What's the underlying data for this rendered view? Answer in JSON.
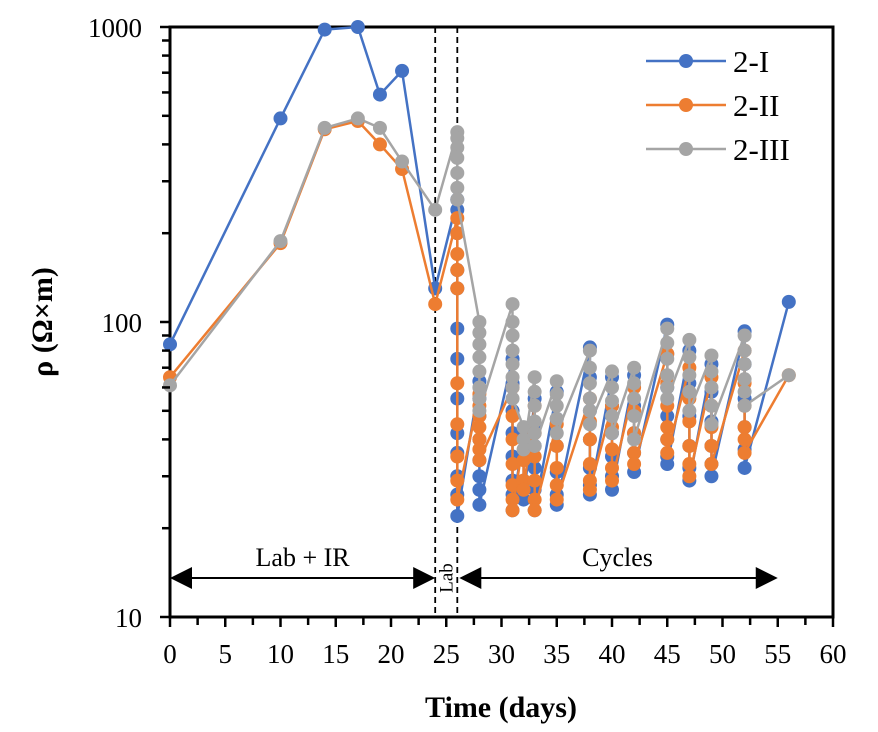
{
  "chart_data": {
    "type": "line",
    "title": "",
    "xlabel": "Time (days)",
    "ylabel": "ρ (Ω×m)",
    "xlim": [
      0,
      60
    ],
    "ylim": [
      10,
      1000
    ],
    "yscale": "log",
    "grid": false,
    "legend_position": "top-right",
    "x_ticks": [
      0,
      5,
      10,
      15,
      20,
      25,
      30,
      35,
      40,
      45,
      50,
      55,
      60
    ],
    "x_tick_labels": [
      "0",
      "5",
      "10",
      "15",
      "20",
      "25",
      "30",
      "35",
      "40",
      "45",
      "50",
      "55",
      "60"
    ],
    "y_ticks": [
      10,
      100,
      1000
    ],
    "y_tick_labels": [
      "10",
      "100",
      "1000"
    ],
    "vertical_dashed_lines": [
      24,
      26
    ],
    "annotations": [
      {
        "text": "Lab + IR",
        "from": 0,
        "to": 24,
        "level": 18
      },
      {
        "text": "Lab",
        "from": 24,
        "to": 26,
        "rotated": true
      },
      {
        "text": "Cycles",
        "from": 26,
        "to": 55,
        "level": 18
      }
    ],
    "series": [
      {
        "name": "2-I",
        "color": "#4472C4",
        "points": [
          [
            0,
            84
          ],
          [
            10,
            490
          ],
          [
            14,
            980
          ],
          [
            17,
            1000
          ],
          [
            19,
            590
          ],
          [
            21,
            710
          ],
          [
            24,
            130
          ],
          [
            26,
            260
          ],
          [
            26,
            240
          ],
          [
            26,
            200
          ],
          [
            26,
            150
          ],
          [
            26,
            130
          ],
          [
            26,
            95
          ],
          [
            26,
            75
          ],
          [
            26,
            55
          ],
          [
            26,
            42
          ],
          [
            26,
            36
          ],
          [
            26,
            30
          ],
          [
            26,
            26
          ],
          [
            26,
            22
          ],
          [
            28,
            63
          ],
          [
            28,
            55
          ],
          [
            28,
            48
          ],
          [
            28,
            40
          ],
          [
            28,
            34
          ],
          [
            28,
            30
          ],
          [
            28,
            27
          ],
          [
            28,
            24
          ],
          [
            31,
            75
          ],
          [
            31,
            62
          ],
          [
            31,
            50
          ],
          [
            31,
            42
          ],
          [
            31,
            35
          ],
          [
            31,
            29
          ],
          [
            31,
            26
          ],
          [
            31,
            23
          ],
          [
            32,
            42
          ],
          [
            32,
            35
          ],
          [
            32,
            29
          ],
          [
            32,
            25
          ],
          [
            33,
            55
          ],
          [
            33,
            45
          ],
          [
            33,
            38
          ],
          [
            33,
            32
          ],
          [
            33,
            27
          ],
          [
            33,
            23
          ],
          [
            35,
            58
          ],
          [
            35,
            47
          ],
          [
            35,
            38
          ],
          [
            35,
            31
          ],
          [
            35,
            26
          ],
          [
            35,
            24
          ],
          [
            38,
            82
          ],
          [
            38,
            65
          ],
          [
            38,
            50
          ],
          [
            38,
            40
          ],
          [
            38,
            32
          ],
          [
            38,
            28
          ],
          [
            38,
            26
          ],
          [
            40,
            65
          ],
          [
            40,
            52
          ],
          [
            40,
            42
          ],
          [
            40,
            35
          ],
          [
            40,
            30
          ],
          [
            40,
            27
          ],
          [
            42,
            66
          ],
          [
            42,
            52
          ],
          [
            42,
            42
          ],
          [
            42,
            36
          ],
          [
            42,
            31
          ],
          [
            45,
            98
          ],
          [
            45,
            78
          ],
          [
            45,
            60
          ],
          [
            45,
            48
          ],
          [
            45,
            40
          ],
          [
            45,
            35
          ],
          [
            45,
            33
          ],
          [
            47,
            80
          ],
          [
            47,
            62
          ],
          [
            47,
            48
          ],
          [
            47,
            38
          ],
          [
            47,
            32
          ],
          [
            47,
            29
          ],
          [
            49,
            72
          ],
          [
            49,
            58
          ],
          [
            49,
            46
          ],
          [
            49,
            38
          ],
          [
            49,
            33
          ],
          [
            49,
            30
          ],
          [
            52,
            93
          ],
          [
            52,
            72
          ],
          [
            52,
            55
          ],
          [
            52,
            44
          ],
          [
            52,
            37
          ],
          [
            52,
            32
          ],
          [
            56,
            117
          ]
        ]
      },
      {
        "name": "2-II",
        "color": "#ED7D31",
        "points": [
          [
            0,
            65
          ],
          [
            10,
            185
          ],
          [
            14,
            450
          ],
          [
            17,
            480
          ],
          [
            19,
            400
          ],
          [
            21,
            330
          ],
          [
            24,
            115
          ],
          [
            26,
            225
          ],
          [
            26,
            200
          ],
          [
            26,
            170
          ],
          [
            26,
            150
          ],
          [
            26,
            130
          ],
          [
            26,
            62
          ],
          [
            26,
            45
          ],
          [
            26,
            35
          ],
          [
            26,
            29
          ],
          [
            26,
            25
          ],
          [
            28,
            57
          ],
          [
            28,
            52
          ],
          [
            28,
            48
          ],
          [
            28,
            44
          ],
          [
            28,
            40
          ],
          [
            28,
            37
          ],
          [
            28,
            34
          ],
          [
            31,
            60
          ],
          [
            31,
            48
          ],
          [
            31,
            40
          ],
          [
            31,
            33
          ],
          [
            31,
            28
          ],
          [
            31,
            25
          ],
          [
            31,
            23
          ],
          [
            32,
            40
          ],
          [
            32,
            34
          ],
          [
            32,
            29
          ],
          [
            32,
            27
          ],
          [
            33,
            52
          ],
          [
            33,
            42
          ],
          [
            33,
            35
          ],
          [
            33,
            29
          ],
          [
            33,
            25
          ],
          [
            33,
            23
          ],
          [
            35,
            45
          ],
          [
            35,
            38
          ],
          [
            35,
            32
          ],
          [
            35,
            28
          ],
          [
            35,
            25
          ],
          [
            38,
            55
          ],
          [
            38,
            46
          ],
          [
            38,
            40
          ],
          [
            38,
            33
          ],
          [
            38,
            29
          ],
          [
            38,
            27
          ],
          [
            40,
            52
          ],
          [
            40,
            44
          ],
          [
            40,
            37
          ],
          [
            40,
            32
          ],
          [
            40,
            29
          ],
          [
            42,
            60
          ],
          [
            42,
            50
          ],
          [
            42,
            42
          ],
          [
            42,
            36
          ],
          [
            42,
            33
          ],
          [
            45,
            78
          ],
          [
            45,
            62
          ],
          [
            45,
            52
          ],
          [
            45,
            44
          ],
          [
            45,
            40
          ],
          [
            45,
            36
          ],
          [
            47,
            70
          ],
          [
            47,
            55
          ],
          [
            47,
            46
          ],
          [
            47,
            38
          ],
          [
            47,
            33
          ],
          [
            47,
            30
          ],
          [
            49,
            65
          ],
          [
            49,
            52
          ],
          [
            49,
            44
          ],
          [
            49,
            38
          ],
          [
            49,
            33
          ],
          [
            52,
            80
          ],
          [
            52,
            62
          ],
          [
            52,
            52
          ],
          [
            52,
            44
          ],
          [
            52,
            40
          ],
          [
            52,
            36
          ],
          [
            56,
            66
          ]
        ]
      },
      {
        "name": "2-III",
        "color": "#A5A5A5",
        "points": [
          [
            0,
            61
          ],
          [
            10,
            188
          ],
          [
            14,
            455
          ],
          [
            17,
            490
          ],
          [
            19,
            455
          ],
          [
            21,
            350
          ],
          [
            24,
            240
          ],
          [
            26,
            440
          ],
          [
            26,
            420
          ],
          [
            26,
            390
          ],
          [
            26,
            360
          ],
          [
            26,
            320
          ],
          [
            26,
            285
          ],
          [
            26,
            260
          ],
          [
            28,
            100
          ],
          [
            28,
            92
          ],
          [
            28,
            84
          ],
          [
            28,
            76
          ],
          [
            28,
            68
          ],
          [
            28,
            60
          ],
          [
            28,
            55
          ],
          [
            28,
            50
          ],
          [
            31,
            115
          ],
          [
            31,
            100
          ],
          [
            31,
            90
          ],
          [
            31,
            80
          ],
          [
            31,
            72
          ],
          [
            31,
            65
          ],
          [
            31,
            60
          ],
          [
            31,
            55
          ],
          [
            32,
            44
          ],
          [
            32,
            40
          ],
          [
            32,
            37
          ],
          [
            33,
            65
          ],
          [
            33,
            58
          ],
          [
            33,
            52
          ],
          [
            33,
            46
          ],
          [
            33,
            42
          ],
          [
            33,
            38
          ],
          [
            35,
            63
          ],
          [
            35,
            57
          ],
          [
            35,
            52
          ],
          [
            35,
            47
          ],
          [
            35,
            42
          ],
          [
            38,
            80
          ],
          [
            38,
            70
          ],
          [
            38,
            62
          ],
          [
            38,
            55
          ],
          [
            38,
            50
          ],
          [
            38,
            45
          ],
          [
            40,
            68
          ],
          [
            40,
            60
          ],
          [
            40,
            54
          ],
          [
            40,
            48
          ],
          [
            40,
            42
          ],
          [
            42,
            70
          ],
          [
            42,
            62
          ],
          [
            42,
            55
          ],
          [
            42,
            48
          ],
          [
            42,
            40
          ],
          [
            45,
            95
          ],
          [
            45,
            85
          ],
          [
            45,
            75
          ],
          [
            45,
            66
          ],
          [
            45,
            60
          ],
          [
            45,
            55
          ],
          [
            47,
            87
          ],
          [
            47,
            76
          ],
          [
            47,
            66
          ],
          [
            47,
            58
          ],
          [
            47,
            50
          ],
          [
            49,
            77
          ],
          [
            49,
            68
          ],
          [
            49,
            60
          ],
          [
            49,
            52
          ],
          [
            49,
            45
          ],
          [
            52,
            90
          ],
          [
            52,
            80
          ],
          [
            52,
            72
          ],
          [
            52,
            64
          ],
          [
            52,
            58
          ],
          [
            52,
            52
          ],
          [
            56,
            66
          ]
        ]
      }
    ]
  }
}
